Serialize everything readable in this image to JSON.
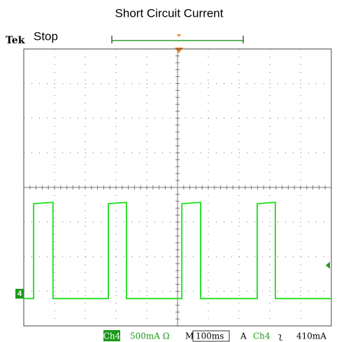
{
  "chart_data": {
    "type": "line",
    "title": "Short Circuit Current",
    "brand": "Tek",
    "status": "Stop",
    "x": [
      0,
      32,
      32,
      95,
      95,
      275,
      275,
      334,
      334,
      514,
      514,
      575,
      575,
      759,
      759,
      818,
      818,
      1000
    ],
    "series": [
      {
        "color": "#2ee02e",
        "values": [
          -70,
          -70,
          1300,
          1320,
          -70,
          -70,
          1300,
          1320,
          -70,
          -70,
          1300,
          1320,
          -70,
          -70,
          1300,
          1320,
          -70,
          -70
        ]
      }
    ],
    "xlim": [
      0,
      1000
    ],
    "ylim": [
      -465,
      3535
    ],
    "channel_marker": "4",
    "footer": {
      "channel": "Ch4",
      "scale": "500mA Ω",
      "time_prefix": "M",
      "timebase": "100ms",
      "trigger_mode": "A",
      "trigger_channel": "Ch4",
      "slope": "ʅ"
    },
    "trigger": {
      "value": 410,
      "label": "410mA"
    }
  }
}
